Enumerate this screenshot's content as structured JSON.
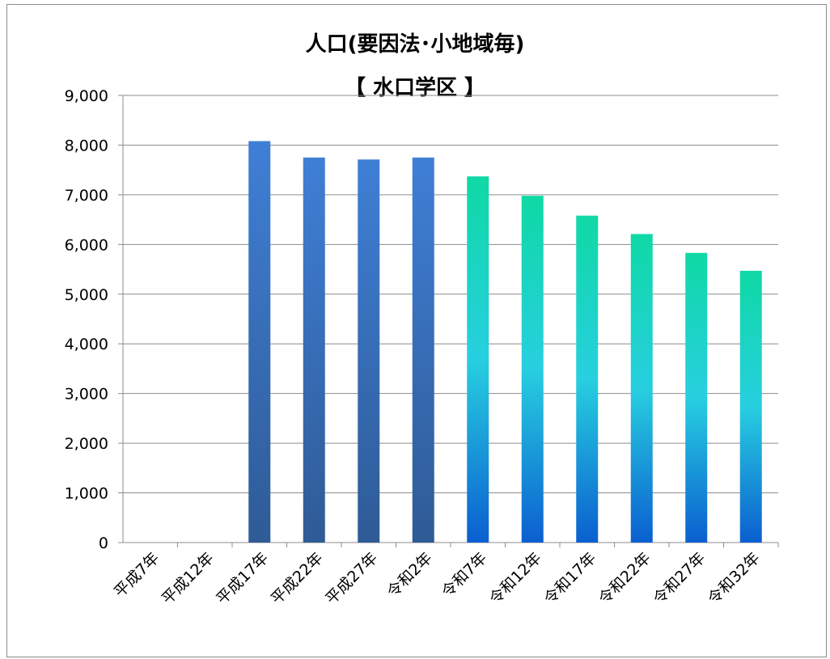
{
  "chart_data": {
    "type": "bar",
    "title": "人口(要因法･小地域毎)",
    "subtitle": "【 水口学区 】",
    "xlabel": "",
    "ylabel": "",
    "ylim": [
      0,
      9000
    ],
    "yticks": [
      "0",
      "1,000",
      "2,000",
      "3,000",
      "4,000",
      "5,000",
      "6,000",
      "7,000",
      "8,000",
      "9,000"
    ],
    "grid": true,
    "categories": [
      "平成7年",
      "平成12年",
      "平成17年",
      "平成22年",
      "平成27年",
      "令和2年",
      "令和7年",
      "令和12年",
      "令和17年",
      "令和22年",
      "令和27年",
      "令和32年"
    ],
    "values": [
      null,
      null,
      8080,
      7750,
      7710,
      7750,
      7370,
      6980,
      6580,
      6210,
      5830,
      5470
    ],
    "colors": {
      "actual_top": "#3f7fd6",
      "actual_bottom": "#2f5b96",
      "projected_top": "#0fd9a5",
      "projected_mid": "#27cfe0",
      "projected_bottom": "#0b5fd0",
      "gridline": "#8c8c8c"
    }
  }
}
